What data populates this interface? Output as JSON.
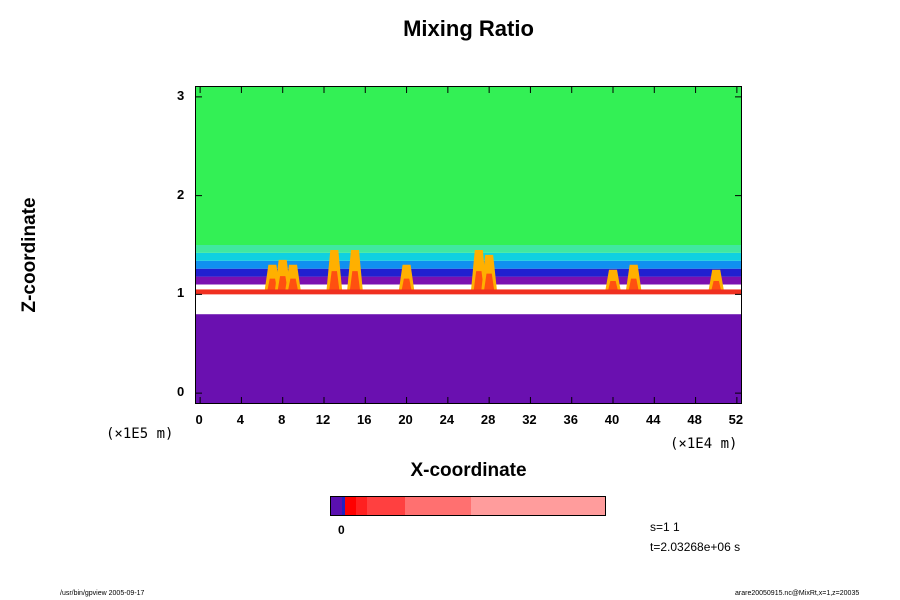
{
  "chart_data": {
    "type": "heatmap",
    "title": "Mixing Ratio",
    "xlabel": "X-coordinate",
    "ylabel": "Z-coordinate",
    "x_unit": "(×1E4 m)",
    "y_unit": "(×1E5 m)",
    "xlim": [
      0,
      52
    ],
    "ylim": [
      0,
      3
    ],
    "x_ticks": [
      "0",
      "4",
      "8",
      "12",
      "16",
      "20",
      "24",
      "28",
      "32",
      "36",
      "40",
      "44",
      "48",
      "52"
    ],
    "y_ticks": [
      "0",
      "1",
      "2",
      "3"
    ],
    "regions": [
      {
        "name": "upper",
        "z_range": [
          1.5,
          3.1
        ],
        "color": "#33f055"
      },
      {
        "name": "transition",
        "z_range": [
          1.1,
          1.5
        ],
        "colors": [
          "#7a10b0",
          "#2020d0",
          "#1090f0",
          "#10d0e0",
          "#40e8a0"
        ]
      },
      {
        "name": "plumes",
        "x": [
          7,
          8,
          9,
          13,
          15,
          20,
          27,
          28,
          40,
          42,
          50
        ],
        "z_top": [
          1.3,
          1.35,
          1.3,
          1.45,
          1.45,
          1.3,
          1.45,
          1.4,
          1.25,
          1.3,
          1.25
        ]
      },
      {
        "name": "red band",
        "z_range": [
          0.95,
          1.05
        ],
        "color": "#f03020"
      },
      {
        "name": "white layer",
        "z_range": [
          0.8,
          1.0
        ],
        "color": "#ffffff"
      },
      {
        "name": "lower",
        "z_range": [
          -0.1,
          0.8
        ],
        "color": "#6a10b0"
      }
    ],
    "colorbar": {
      "label": "0",
      "colors": [
        "#5a10b0",
        "#2020c0",
        "#ff0000",
        "#ff2020",
        "#ff4040",
        "#ff7070",
        "#ff9c9c"
      ],
      "widths": [
        4,
        1,
        4,
        4,
        14,
        24,
        49
      ]
    }
  },
  "annotations": {
    "stride": "s=1 1",
    "time": "t=2.03268e+06 s",
    "footer_left": "/usr/bin/gpview 2005-09-17",
    "footer_right": "arare20050915.nc@MixRt,x=1,z=20035"
  }
}
